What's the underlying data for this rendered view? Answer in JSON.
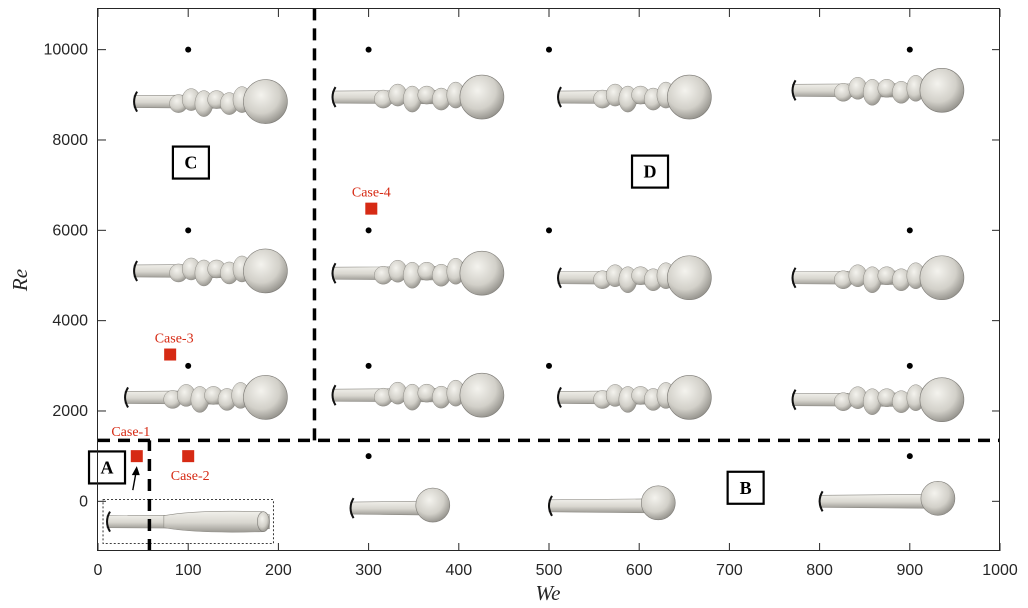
{
  "chart_data": {
    "type": "scatter",
    "xlabel": "We",
    "ylabel": "Re",
    "xlim": [
      0,
      1000
    ],
    "ylim": [
      -1100,
      10900
    ],
    "x_ticks": [
      0,
      100,
      200,
      300,
      400,
      500,
      600,
      700,
      800,
      900,
      1000
    ],
    "y_ticks": [
      0,
      2000,
      4000,
      6000,
      8000,
      10000
    ],
    "grid": false,
    "simulation_points": [
      {
        "x": 100,
        "y": 10000
      },
      {
        "x": 300,
        "y": 10000
      },
      {
        "x": 500,
        "y": 10000
      },
      {
        "x": 900,
        "y": 10000
      },
      {
        "x": 100,
        "y": 6000
      },
      {
        "x": 300,
        "y": 6000
      },
      {
        "x": 500,
        "y": 6000
      },
      {
        "x": 900,
        "y": 6000
      },
      {
        "x": 100,
        "y": 3000
      },
      {
        "x": 300,
        "y": 3000
      },
      {
        "x": 500,
        "y": 3000
      },
      {
        "x": 900,
        "y": 3000
      },
      {
        "x": 300,
        "y": 1000
      },
      {
        "x": 900,
        "y": 1000
      }
    ],
    "cases": [
      {
        "label": "Case-1",
        "x": 43,
        "y": 1000
      },
      {
        "label": "Case-2",
        "x": 100,
        "y": 1000
      },
      {
        "label": "Case-3",
        "x": 80,
        "y": 3250
      },
      {
        "label": "Case-4",
        "x": 303,
        "y": 6480
      }
    ],
    "boundaries": [
      {
        "orientation": "vertical",
        "x": 240,
        "y_from": 1350,
        "y_to": 10900
      },
      {
        "orientation": "horizontal",
        "y": 1350,
        "x_from": 0,
        "x_to": 1000
      },
      {
        "orientation": "vertical",
        "x": 57,
        "y_from": -1100,
        "y_to": 1350
      }
    ],
    "regions": [
      {
        "label": "C",
        "x": 103,
        "y": 7500
      },
      {
        "label": "D",
        "x": 612,
        "y": 7300
      },
      {
        "label": "A",
        "x": 10,
        "y": 750
      },
      {
        "label": "B",
        "x": 718,
        "y": 300
      }
    ],
    "jet_morphologies": [
      {
        "x0": 40,
        "x1": 210,
        "y": 8850,
        "head": "turbulent"
      },
      {
        "x0": 260,
        "x1": 450,
        "y": 8950,
        "head": "turbulent"
      },
      {
        "x0": 510,
        "x1": 680,
        "y": 8950,
        "head": "turbulent"
      },
      {
        "x0": 770,
        "x1": 960,
        "y": 9100,
        "head": "turbulent"
      },
      {
        "x0": 40,
        "x1": 210,
        "y": 5100,
        "head": "turbulent"
      },
      {
        "x0": 260,
        "x1": 450,
        "y": 5050,
        "head": "turbulent"
      },
      {
        "x0": 510,
        "x1": 680,
        "y": 4950,
        "head": "turbulent"
      },
      {
        "x0": 770,
        "x1": 960,
        "y": 4950,
        "head": "turbulent"
      },
      {
        "x0": 30,
        "x1": 210,
        "y": 2300,
        "head": "turbulent"
      },
      {
        "x0": 260,
        "x1": 450,
        "y": 2350,
        "head": "turbulent"
      },
      {
        "x0": 510,
        "x1": 680,
        "y": 2300,
        "head": "turbulent"
      },
      {
        "x0": 770,
        "x1": 960,
        "y": 2250,
        "head": "turbulent"
      },
      {
        "x0": 280,
        "x1": 390,
        "y": -150,
        "head": "bulb"
      },
      {
        "x0": 500,
        "x1": 640,
        "y": -100,
        "head": "bulb"
      },
      {
        "x0": 800,
        "x1": 950,
        "y": 0,
        "head": "bulb"
      },
      {
        "x0": 10,
        "x1": 190,
        "y": -450,
        "head": "round"
      }
    ]
  }
}
